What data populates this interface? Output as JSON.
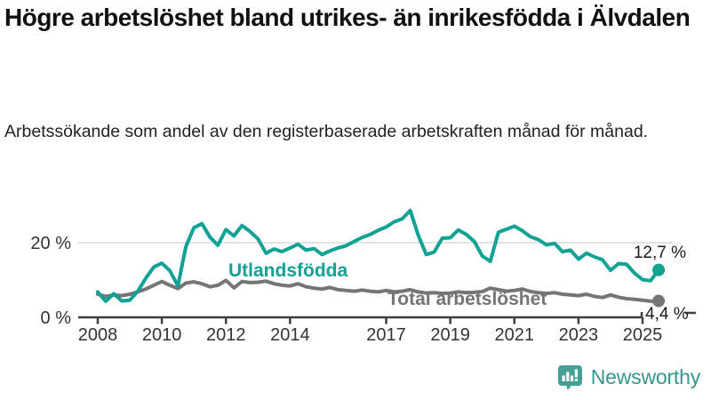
{
  "header": {
    "title": "Högre arbetslöshet bland utrikes- än inrikesfödda i Älvdalen",
    "subtitle": "Arbetssökande som andel av den registerbaserade arbetskraften månad för månad."
  },
  "chart_data": {
    "type": "line",
    "title": "Högre arbetslöshet bland utrikes- än inrikesfödda i Älvdalen",
    "subtitle": "Arbetssökande som andel av den registerbaserade arbetskraften månad för månad.",
    "unit": "%",
    "x_start": 2008.0,
    "x_step_years": 0.25,
    "xlim": [
      2008,
      2025.75
    ],
    "ylim": [
      0,
      30
    ],
    "x_ticks": [
      2008,
      2010,
      2012,
      2014,
      2017,
      2019,
      2021,
      2023,
      2025
    ],
    "y_ticks": [
      {
        "value": 0,
        "label": "0 %"
      },
      {
        "value": 20,
        "label": "20 %"
      }
    ],
    "grid": "horizontal gridline at 20 % only",
    "legend_position": "inline labels on lines",
    "series": [
      {
        "name": "Utlandsfödda",
        "color": "#10a294",
        "end_label": "12,7 %",
        "end_value": 12.7,
        "values": [
          6.8,
          4.3,
          6.3,
          4.4,
          4.6,
          7.0,
          10.5,
          13.5,
          14.5,
          12.5,
          8.4,
          19.0,
          24.0,
          25.1,
          21.5,
          19.3,
          23.5,
          21.8,
          24.6,
          23.0,
          21.0,
          17.2,
          18.3,
          17.6,
          18.6,
          19.6,
          18.0,
          18.4,
          16.8,
          17.8,
          18.6,
          19.2,
          20.3,
          21.4,
          22.2,
          23.3,
          24.2,
          25.6,
          26.4,
          28.6,
          22.0,
          16.8,
          17.5,
          21.2,
          21.3,
          23.4,
          22.2,
          20.3,
          16.4,
          15.0,
          22.8,
          23.6,
          24.4,
          23.2,
          21.6,
          20.8,
          19.4,
          19.8,
          17.6,
          18.0,
          15.6,
          17.2,
          16.2,
          15.4,
          12.6,
          14.4,
          14.2,
          11.8,
          10.1,
          9.8,
          12.7
        ]
      },
      {
        "name": "Total arbetslöshet",
        "color": "#757575",
        "end_label": "4,4 %",
        "end_value": 4.4,
        "values": [
          6.2,
          5.6,
          6.0,
          5.8,
          6.2,
          6.8,
          7.6,
          8.6,
          9.6,
          8.6,
          7.7,
          9.2,
          9.5,
          9.0,
          8.2,
          8.6,
          9.9,
          7.9,
          9.6,
          9.3,
          9.4,
          9.7,
          9.0,
          8.6,
          8.4,
          9.0,
          8.2,
          7.8,
          7.6,
          8.0,
          7.4,
          7.2,
          7.0,
          7.3,
          7.0,
          6.8,
          7.2,
          6.8,
          7.0,
          7.4,
          6.8,
          6.5,
          6.6,
          6.4,
          6.5,
          6.8,
          6.6,
          6.7,
          6.9,
          7.8,
          7.4,
          7.0,
          7.2,
          7.6,
          6.9,
          6.6,
          6.4,
          6.6,
          6.2,
          6.0,
          5.8,
          6.2,
          5.6,
          5.3,
          6.0,
          5.4,
          5.0,
          4.8,
          4.6,
          4.3,
          4.4
        ]
      }
    ]
  },
  "branding": {
    "logo_text": "Newsworthy",
    "logo_color": "#35968d",
    "icon_color": "#46a096",
    "icon": "newsworthy-speech-bubble-chart-icon"
  }
}
